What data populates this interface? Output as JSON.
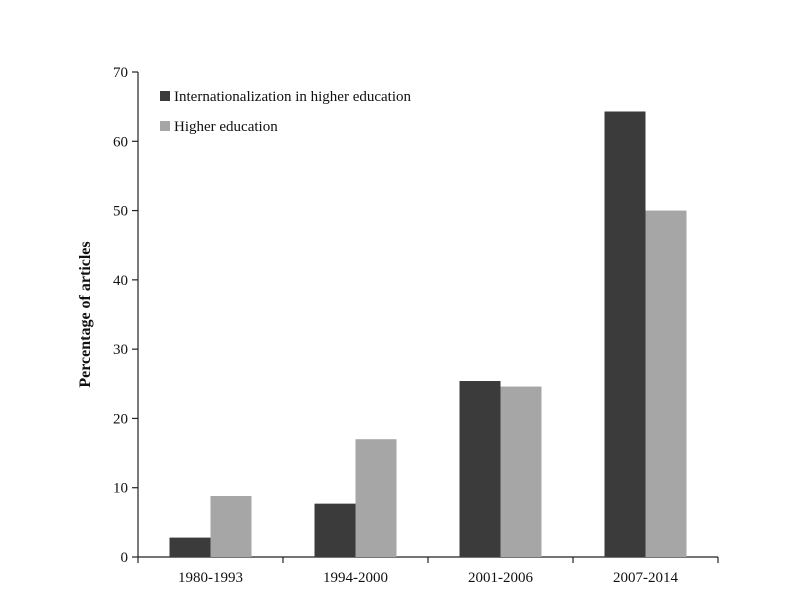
{
  "chart_data": {
    "type": "bar",
    "title": "",
    "xlabel": "",
    "ylabel": "Percentage of articles",
    "ylim": [
      0,
      70
    ],
    "yticks": [
      0,
      10,
      20,
      30,
      40,
      50,
      60,
      70
    ],
    "categories": [
      "1980-1993",
      "1994-2000",
      "2001-2006",
      "2007-2014"
    ],
    "series": [
      {
        "name": "Internationalization in higher education",
        "color": "#3b3b3b",
        "values": [
          2.8,
          7.7,
          25.4,
          64.3
        ]
      },
      {
        "name": "Higher education",
        "color": "#a6a6a6",
        "values": [
          8.8,
          17.0,
          24.6,
          50.0
        ]
      }
    ],
    "legend_position": "top-left",
    "grid": false
  }
}
